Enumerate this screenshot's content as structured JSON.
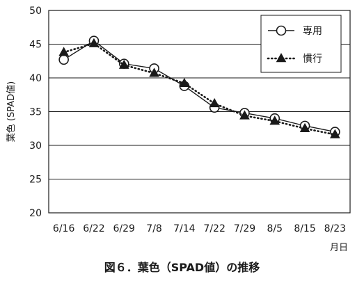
{
  "chart_data": {
    "type": "line",
    "ylabel": "葉色 (SPAD値)",
    "xunit": "月日",
    "categories": [
      "6/16",
      "6/22",
      "6/29",
      "7/8",
      "7/14",
      "7/22",
      "7/29",
      "8/5",
      "8/15",
      "8/23"
    ],
    "ylim": [
      20,
      50
    ],
    "yticks": [
      "20",
      "25",
      "30",
      "35",
      "40",
      "45",
      "50"
    ],
    "grid": true,
    "legend_position": "top-right",
    "series": [
      {
        "name": "専用",
        "marker": "open-circle",
        "line": "solid",
        "color": "#1a1a1a",
        "values": [
          42.7,
          45.5,
          42.1,
          41.4,
          38.8,
          35.6,
          34.8,
          34.0,
          32.9,
          32.0
        ]
      },
      {
        "name": "慣行",
        "marker": "filled-triangle",
        "line": "dotted",
        "color": "#1a1a1a",
        "values": [
          43.8,
          45.1,
          41.9,
          40.7,
          39.2,
          36.2,
          34.4,
          33.6,
          32.5,
          31.6
        ]
      }
    ]
  },
  "caption": "図６．葉色（SPAD値）の推移"
}
